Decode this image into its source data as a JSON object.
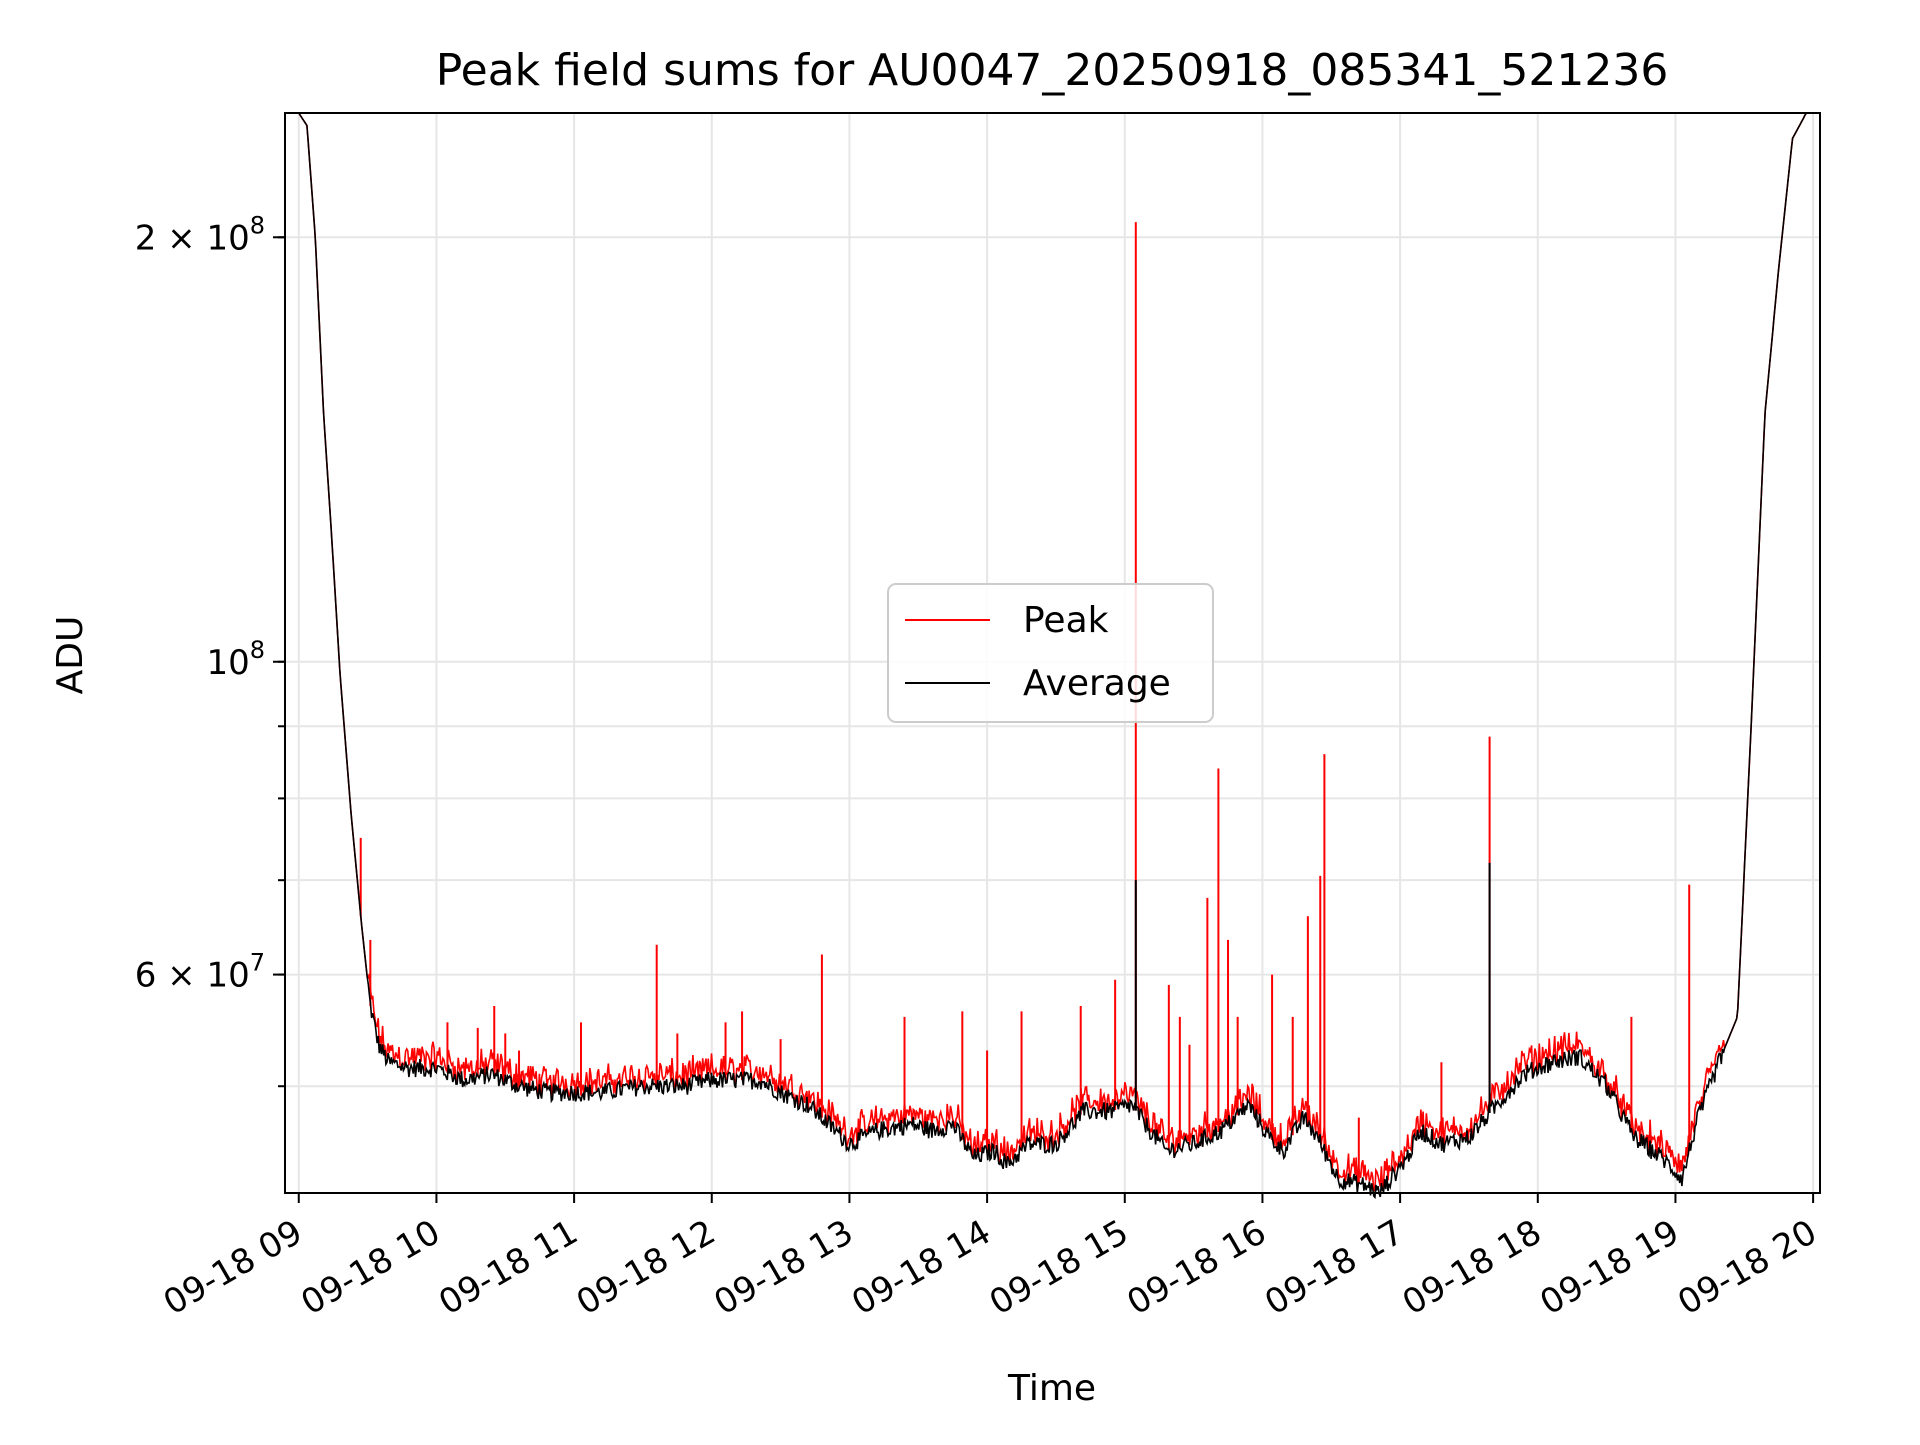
{
  "chart_data": {
    "type": "line",
    "title": "Peak field sums for AU0047_20250918_085341_521236",
    "xlabel": "Time",
    "ylabel": "ADU",
    "x_unit": "hours (time of day, 2025-09-18)",
    "xlim": [
      8.9,
      20.05
    ],
    "ylim": [
      42000000,
      245000000
    ],
    "yscale": "log",
    "grid": true,
    "legend_position": "center",
    "x_tick_labels": [
      "09-18 09",
      "09-18 10",
      "09-18 11",
      "09-18 12",
      "09-18 13",
      "09-18 14",
      "09-18 15",
      "09-18 16",
      "09-18 17",
      "09-18 18",
      "09-18 19",
      "09-18 20"
    ],
    "y_tick_labels": [
      {
        "value": 200000000,
        "base": "2 × 10",
        "exp": "8"
      },
      {
        "value": 100000000,
        "base": "10",
        "exp": "8"
      },
      {
        "value": 60000000,
        "base": "6 × 10",
        "exp": "7"
      }
    ],
    "series": [
      {
        "name": "Peak",
        "color": "#ff0000",
        "base_follows": "Average",
        "spikes": [
          {
            "x": 9.45,
            "y": 75000000
          },
          {
            "x": 9.52,
            "y": 63500000
          },
          {
            "x": 9.62,
            "y": 53500000
          },
          {
            "x": 10.08,
            "y": 55500000
          },
          {
            "x": 10.3,
            "y": 55000000
          },
          {
            "x": 10.42,
            "y": 57000000
          },
          {
            "x": 10.5,
            "y": 54500000
          },
          {
            "x": 10.6,
            "y": 53000000
          },
          {
            "x": 11.05,
            "y": 55500000
          },
          {
            "x": 11.6,
            "y": 63000000
          },
          {
            "x": 11.75,
            "y": 54500000
          },
          {
            "x": 12.1,
            "y": 55500000
          },
          {
            "x": 12.22,
            "y": 56500000
          },
          {
            "x": 12.5,
            "y": 54000000
          },
          {
            "x": 12.8,
            "y": 62000000
          },
          {
            "x": 13.4,
            "y": 56000000
          },
          {
            "x": 13.82,
            "y": 56500000
          },
          {
            "x": 14.0,
            "y": 53000000
          },
          {
            "x": 14.25,
            "y": 56500000
          },
          {
            "x": 14.68,
            "y": 57000000
          },
          {
            "x": 14.93,
            "y": 59500000
          },
          {
            "x": 15.08,
            "y": 205000000
          },
          {
            "x": 15.32,
            "y": 59000000
          },
          {
            "x": 15.4,
            "y": 56000000
          },
          {
            "x": 15.47,
            "y": 53500000
          },
          {
            "x": 15.6,
            "y": 68000000
          },
          {
            "x": 15.68,
            "y": 84000000
          },
          {
            "x": 15.75,
            "y": 63500000
          },
          {
            "x": 15.82,
            "y": 56000000
          },
          {
            "x": 16.07,
            "y": 60000000
          },
          {
            "x": 16.22,
            "y": 56000000
          },
          {
            "x": 16.33,
            "y": 66000000
          },
          {
            "x": 16.42,
            "y": 70500000
          },
          {
            "x": 16.45,
            "y": 86000000
          },
          {
            "x": 16.7,
            "y": 47500000
          },
          {
            "x": 17.3,
            "y": 52000000
          },
          {
            "x": 17.65,
            "y": 88500000
          },
          {
            "x": 18.68,
            "y": 56000000
          },
          {
            "x": 19.1,
            "y": 69500000
          }
        ]
      },
      {
        "name": "Average",
        "color": "#000000",
        "x": [
          8.9,
          9.0,
          9.06,
          9.12,
          9.18,
          9.25,
          9.3,
          9.38,
          9.45,
          9.52,
          9.58,
          9.65,
          9.8,
          10.0,
          10.2,
          10.4,
          10.6,
          10.8,
          11.0,
          11.2,
          11.5,
          11.8,
          12.0,
          12.2,
          12.35,
          12.5,
          12.7,
          12.85,
          13.0,
          13.2,
          13.45,
          13.6,
          13.75,
          13.9,
          14.05,
          14.15,
          14.3,
          14.5,
          14.7,
          14.9,
          15.05,
          15.15,
          15.3,
          15.5,
          15.7,
          15.9,
          16.05,
          16.15,
          16.3,
          16.4,
          16.55,
          16.75,
          16.85,
          17.05,
          17.15,
          17.3,
          17.5,
          17.7,
          17.9,
          18.1,
          18.3,
          18.5,
          18.7,
          18.9,
          19.05,
          19.15,
          19.25,
          19.35,
          19.45,
          19.55,
          19.65,
          19.75,
          19.85,
          19.95,
          20.05
        ],
        "y": [
          245000000,
          245000000,
          240000000,
          200000000,
          150000000,
          118000000,
          98000000,
          78000000,
          66000000,
          57000000,
          53500000,
          52000000,
          51500000,
          51500000,
          50500000,
          51000000,
          50000000,
          49500000,
          49500000,
          49500000,
          50000000,
          50000000,
          50500000,
          50500000,
          50500000,
          49500000,
          48500000,
          47000000,
          45500000,
          46500000,
          47000000,
          46500000,
          47000000,
          44500000,
          45000000,
          44000000,
          45500000,
          45500000,
          48000000,
          48000000,
          48500000,
          47000000,
          45000000,
          45500000,
          46500000,
          48500000,
          46000000,
          45000000,
          47500000,
          46000000,
          43000000,
          42500000,
          42000000,
          44500000,
          46500000,
          45500000,
          46000000,
          48500000,
          51000000,
          52000000,
          52500000,
          50000000,
          46000000,
          44500000,
          43000000,
          47000000,
          50000000,
          53000000,
          56000000,
          90000000,
          150000000,
          190000000,
          235000000,
          245000000,
          245000000
        ]
      }
    ]
  }
}
